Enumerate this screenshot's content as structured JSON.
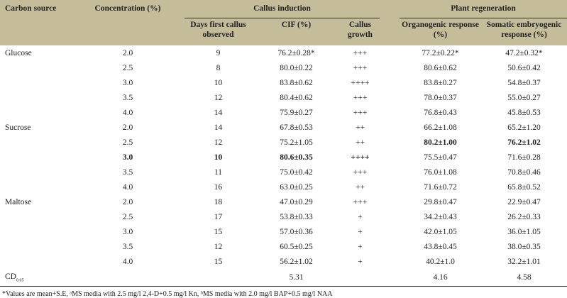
{
  "headers": {
    "carbon_source": "Carbon source",
    "concentration": "Concentration (%)",
    "callus_induction": "Callus induction",
    "plant_regeneration": "Plant regeneration",
    "days_first_callus": "Days first callus observed",
    "cif": "CIF (%)",
    "callus_growth": "Callus growth",
    "organogenic": "Organogenic response (%)",
    "somatic": "Somatic embryogenic response (%)"
  },
  "rows": [
    {
      "source": "Glucose",
      "conc": "2.0",
      "days": "9",
      "cif": "76.2±0.28*",
      "growth": "+++",
      "org": "77.2±0.22*",
      "som": "47.2±0.32*"
    },
    {
      "source": "",
      "conc": "2.5",
      "days": "8",
      "cif": "80.0±0.22",
      "growth": "+++",
      "org": "80.6±0.62",
      "som": "50.6±0.42"
    },
    {
      "source": "",
      "conc": "3.0",
      "days": "10",
      "cif": "83.8±0.62",
      "growth": "++++",
      "org": "83.8±0.27",
      "som": "54.8±0.37"
    },
    {
      "source": "",
      "conc": "3.5",
      "days": "12",
      "cif": "80.4±0.62",
      "growth": "+++",
      "org": "78.0±0.37",
      "som": "55.0±0.27"
    },
    {
      "source": "",
      "conc": "4.0",
      "days": "14",
      "cif": "75.9±0.27",
      "growth": "+++",
      "org": "76.8±0.43",
      "som": "45.8±0.53"
    },
    {
      "source": "Sucrose",
      "conc": "2.0",
      "days": "14",
      "cif": "67.8±0.53",
      "growth": "++",
      "org": "66.2±1.08",
      "som": "65.2±1.20"
    },
    {
      "source": "",
      "conc": "2.5",
      "days": "12",
      "cif": "75.2±1.05",
      "growth": "++",
      "org": "80.2±1.00",
      "som": "76.2±1.02"
    },
    {
      "source": "",
      "conc": "3.0",
      "days": "10",
      "cif": "80.6±0.35",
      "growth": "++++",
      "org": "75.5±0.47",
      "som": "71.6±0.28"
    },
    {
      "source": "",
      "conc": "3.5",
      "days": "11",
      "cif": "75.0±0.42",
      "growth": "+++",
      "org": "76.0±1.08",
      "som": "70.8±0.46"
    },
    {
      "source": "",
      "conc": "4.0",
      "days": "16",
      "cif": "63.0±0.25",
      "growth": "++",
      "org": "71.6±0.72",
      "som": "65.8±0.52"
    },
    {
      "source": "Maltose",
      "conc": "2.0",
      "days": "18",
      "cif": "47.0±0.29",
      "growth": "+++",
      "org": "29.8±0.47",
      "som": "22.9±0.47"
    },
    {
      "source": "",
      "conc": "2.5",
      "days": "17",
      "cif": "53.8±0.33",
      "growth": "+",
      "org": "34.2±0.43",
      "som": "26.2±0.33"
    },
    {
      "source": "",
      "conc": "3.0",
      "days": "15",
      "cif": "57.0±0.36",
      "growth": "+",
      "org": "42.0±1.05",
      "som": "36.0±1.05"
    },
    {
      "source": "",
      "conc": "3.5",
      "days": "12",
      "cif": "60.5±0.25",
      "growth": "+",
      "org": "43.8±0.45",
      "som": "38.0±0.35"
    },
    {
      "source": "",
      "conc": "4.0",
      "days": "15",
      "cif": "56.2±1.02",
      "growth": "+",
      "org": "40.2±1.0",
      "som": "32.2±1.01"
    }
  ],
  "cd": {
    "label": "CD",
    "sub": "0.05",
    "cif": "5.31",
    "org": "4.16",
    "som": "4.58"
  },
  "footnote": "*Values are mean+S.E, ᵃMS media with 2.5 mg/l 2,4-D+0.5 mg/l Kn, ᵇMS media with 2.0 mg/l BAP+0.5 mg/l NAA",
  "colors": {
    "header_bg": "#c5bd99"
  }
}
